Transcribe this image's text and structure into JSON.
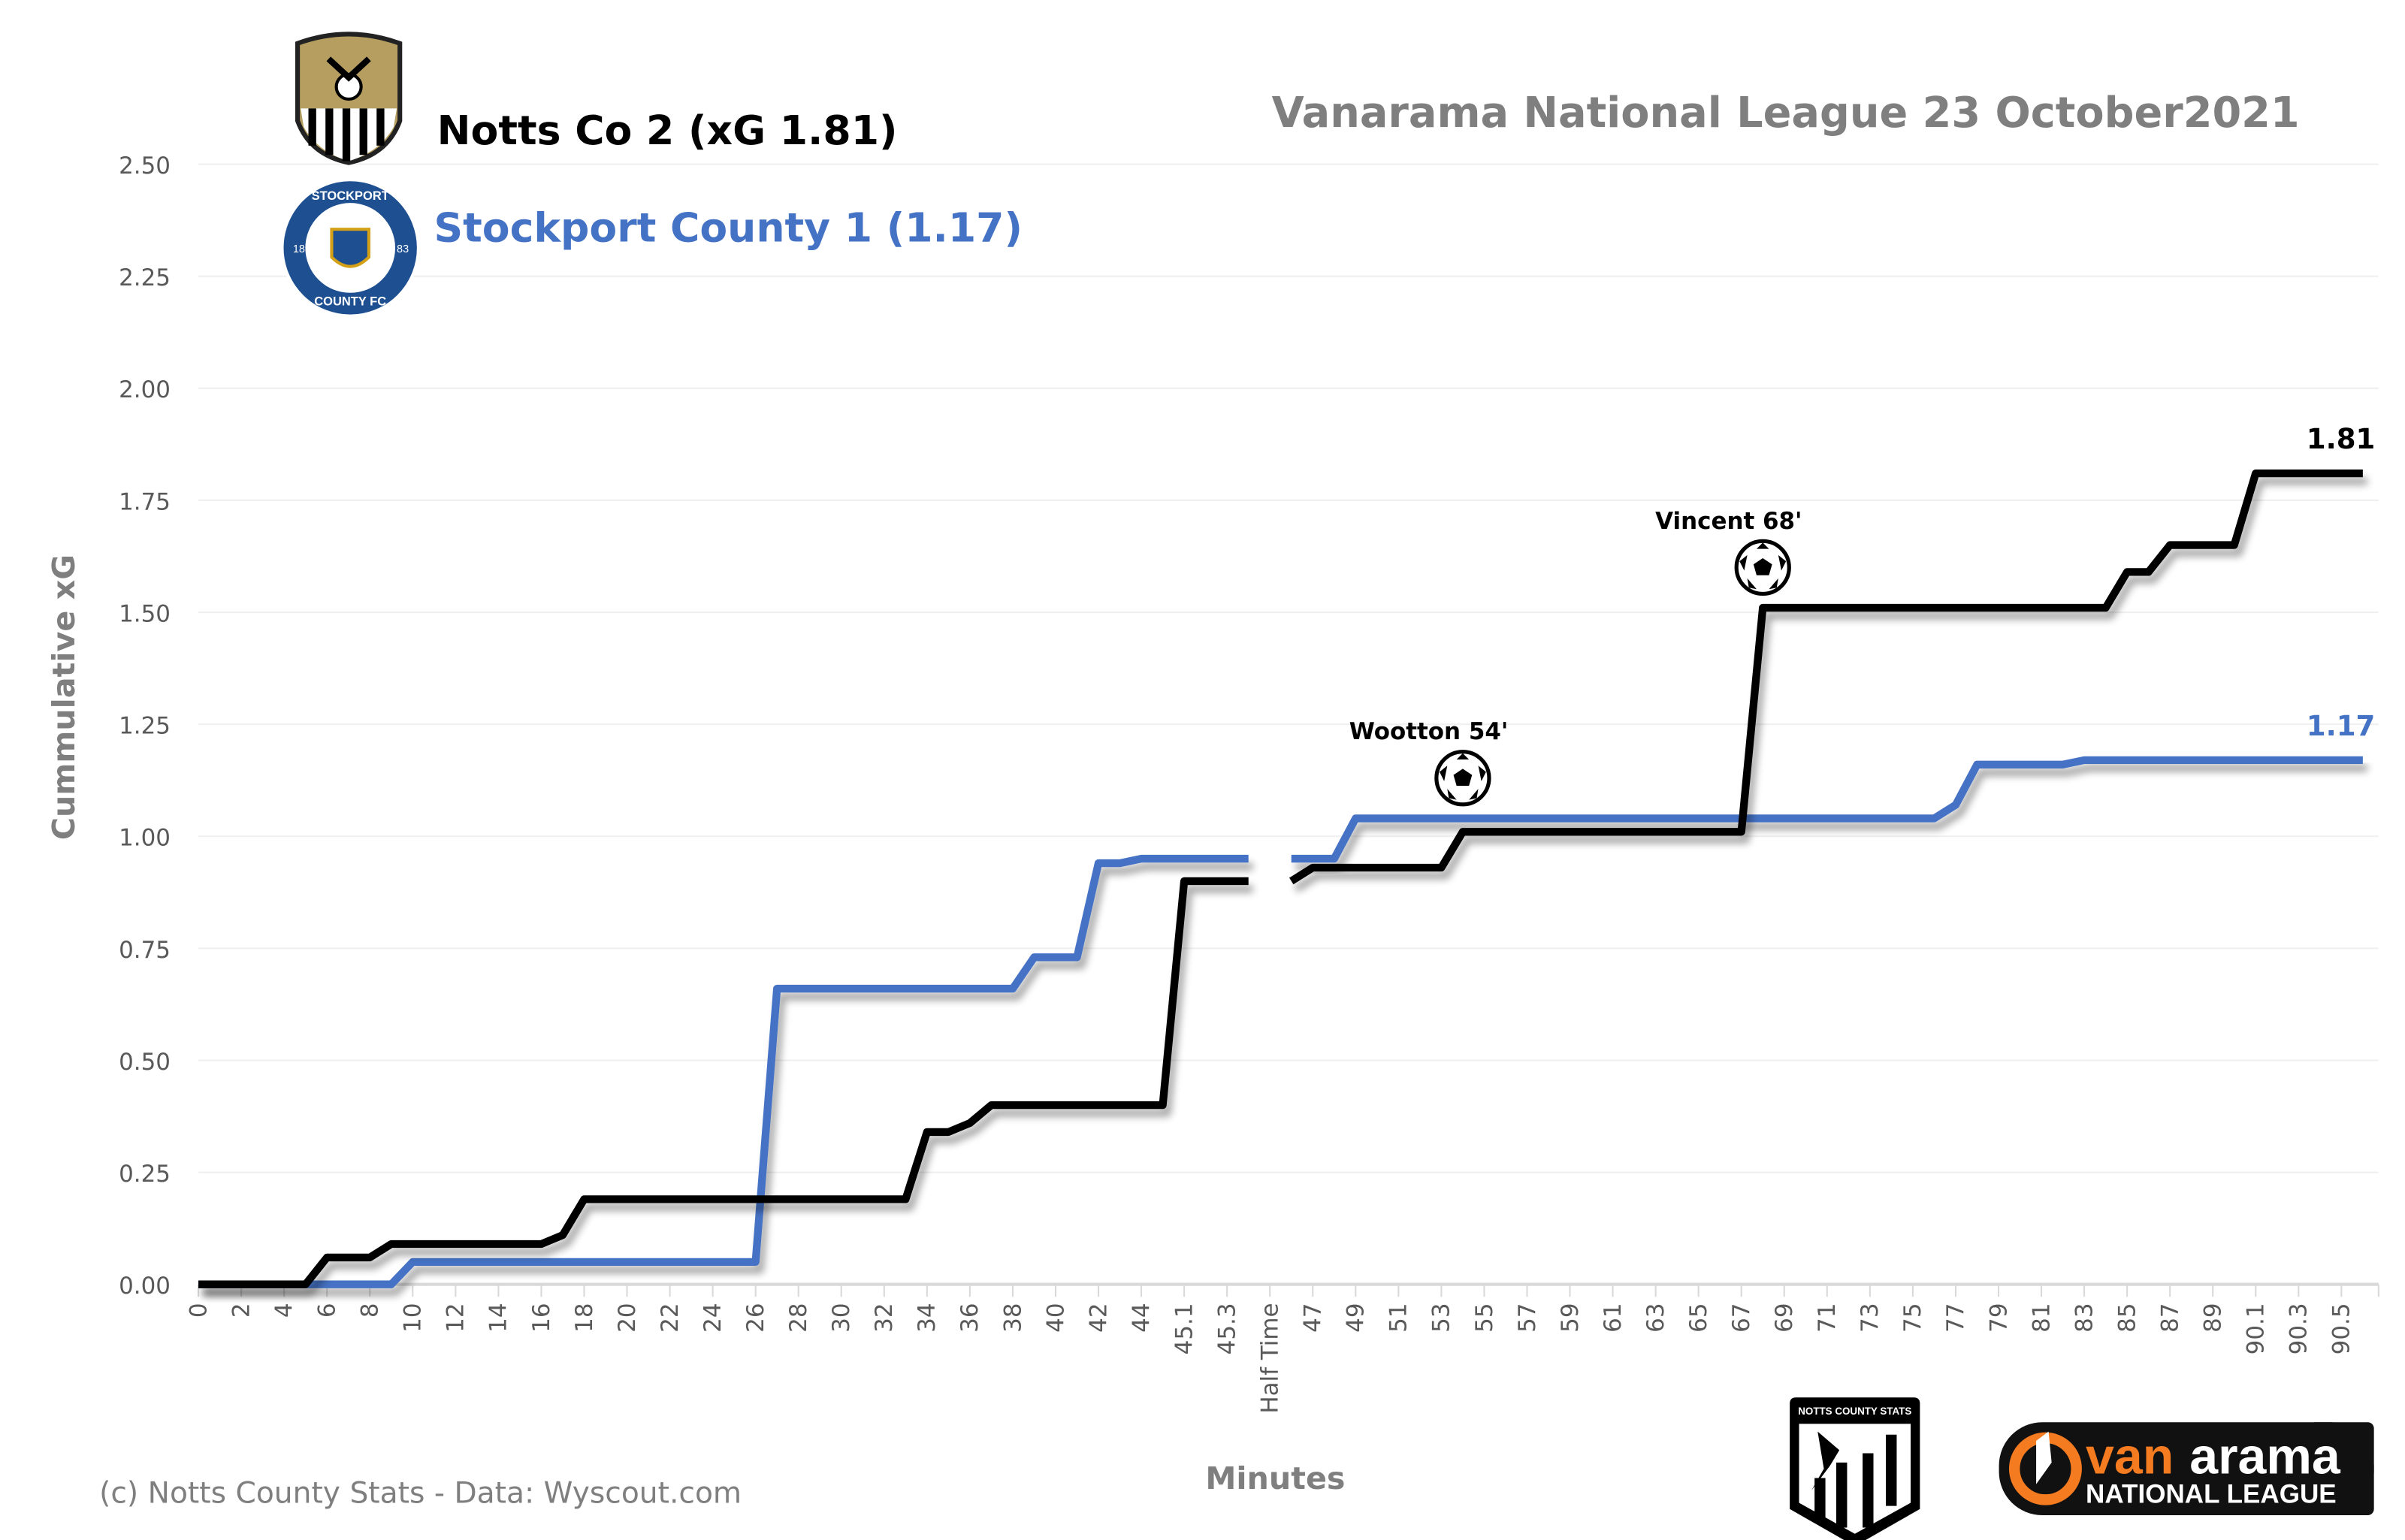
{
  "chart_data": {
    "type": "line",
    "title": "Vanarama National League  23 October2021",
    "home_title": "Notts Co 2 (xG 1.81)",
    "away_title": "Stockport County 1 (1.17)",
    "xlabel": "Minutes",
    "ylabel": "Cummulative  xG",
    "ylim": [
      0,
      2.5
    ],
    "yticks": [
      "0.00",
      "0.25",
      "0.50",
      "0.75",
      "1.00",
      "1.25",
      "1.50",
      "1.75",
      "2.00",
      "2.25",
      "2.50"
    ],
    "grid": true,
    "categories": [
      "0",
      "1",
      "2",
      "3",
      "4",
      "5",
      "6",
      "7",
      "8",
      "9",
      "10",
      "11",
      "12",
      "13",
      "14",
      "15",
      "16",
      "17",
      "18",
      "19",
      "20",
      "21",
      "22",
      "23",
      "24",
      "25",
      "26",
      "27",
      "28",
      "29",
      "30",
      "31",
      "32",
      "33",
      "34",
      "35",
      "36",
      "37",
      "38",
      "39",
      "40",
      "41",
      "42",
      "43",
      "44",
      "45",
      "45.1",
      "45.2",
      "45.3",
      "45.4",
      "Half Time",
      "46",
      "47",
      "48",
      "49",
      "50",
      "51",
      "52",
      "53",
      "54",
      "55",
      "56",
      "57",
      "58",
      "59",
      "60",
      "61",
      "62",
      "63",
      "64",
      "65",
      "66",
      "67",
      "68",
      "69",
      "70",
      "71",
      "72",
      "73",
      "74",
      "75",
      "76",
      "77",
      "78",
      "79",
      "80",
      "81",
      "82",
      "83",
      "84",
      "85",
      "86",
      "87",
      "88",
      "89",
      "90",
      "90.1",
      "90.2",
      "90.3",
      "90.4",
      "90.5",
      "90.6"
    ],
    "series": [
      {
        "name": "Notts Co",
        "color": "#000000",
        "end_label": "1.81",
        "values": [
          0,
          0,
          0,
          0,
          0,
          0,
          0.06,
          0.06,
          0.06,
          0.09,
          0.09,
          0.09,
          0.09,
          0.09,
          0.09,
          0.09,
          0.09,
          0.11,
          0.19,
          0.19,
          0.19,
          0.19,
          0.19,
          0.19,
          0.19,
          0.19,
          0.19,
          0.19,
          0.19,
          0.19,
          0.19,
          0.19,
          0.19,
          0.19,
          0.34,
          0.34,
          0.36,
          0.4,
          0.4,
          0.4,
          0.4,
          0.4,
          0.4,
          0.4,
          0.4,
          0.4,
          0.9,
          0.9,
          0.9,
          0.9,
          null,
          0.9,
          0.93,
          0.93,
          0.93,
          0.93,
          0.93,
          0.93,
          0.93,
          1.01,
          1.01,
          1.01,
          1.01,
          1.01,
          1.01,
          1.01,
          1.01,
          1.01,
          1.01,
          1.01,
          1.01,
          1.01,
          1.01,
          1.51,
          1.51,
          1.51,
          1.51,
          1.51,
          1.51,
          1.51,
          1.51,
          1.51,
          1.51,
          1.51,
          1.51,
          1.51,
          1.51,
          1.51,
          1.51,
          1.51,
          1.59,
          1.59,
          1.65,
          1.65,
          1.65,
          1.65,
          1.81,
          1.81,
          1.81,
          1.81,
          1.81,
          1.81
        ]
      },
      {
        "name": "Stockport County",
        "color": "#4472C4",
        "end_label": "1.17",
        "values": [
          0,
          0,
          0,
          0,
          0,
          0,
          0,
          0,
          0,
          0,
          0.05,
          0.05,
          0.05,
          0.05,
          0.05,
          0.05,
          0.05,
          0.05,
          0.05,
          0.05,
          0.05,
          0.05,
          0.05,
          0.05,
          0.05,
          0.05,
          0.05,
          0.66,
          0.66,
          0.66,
          0.66,
          0.66,
          0.66,
          0.66,
          0.66,
          0.66,
          0.66,
          0.66,
          0.66,
          0.73,
          0.73,
          0.73,
          0.94,
          0.94,
          0.95,
          0.95,
          0.95,
          0.95,
          0.95,
          0.95,
          null,
          0.95,
          0.95,
          0.95,
          1.04,
          1.04,
          1.04,
          1.04,
          1.04,
          1.04,
          1.04,
          1.04,
          1.04,
          1.04,
          1.04,
          1.04,
          1.04,
          1.04,
          1.04,
          1.04,
          1.04,
          1.04,
          1.04,
          1.04,
          1.04,
          1.04,
          1.04,
          1.04,
          1.04,
          1.04,
          1.04,
          1.04,
          1.07,
          1.16,
          1.16,
          1.16,
          1.16,
          1.16,
          1.17,
          1.17,
          1.17,
          1.17,
          1.17,
          1.17,
          1.17,
          1.17,
          1.17,
          1.17,
          1.17,
          1.17,
          1.17,
          1.17
        ]
      }
    ],
    "annotations": [
      {
        "text": "Wootton 54'",
        "category": "54",
        "value": 1.13,
        "icon": "football-icon"
      },
      {
        "text": "Vincent 68'",
        "category": "68",
        "value": 1.6,
        "icon": "football-icon"
      }
    ],
    "footer": "(c) Notts County Stats - Data: Wyscout.com",
    "logos": {
      "home_crest": "Notts County FC",
      "away_crest_top": "STOCKPORT",
      "away_crest_bottom": "COUNTY FC",
      "away_crest_left": "18",
      "away_crest_right": "83",
      "stats_badge": "NOTTS COUNTY STATS",
      "league_logo_a": "van",
      "league_logo_b": "arama",
      "league_logo_c": "NATIONAL LEAGUE",
      "league_orange": "#F47B20"
    }
  }
}
